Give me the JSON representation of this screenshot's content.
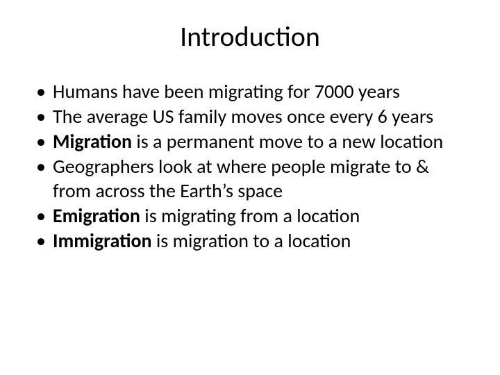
{
  "slide": {
    "title": "Introduction",
    "bullets": [
      {
        "runs": [
          {
            "text": "Humans have been migrating for 7000 years",
            "bold": false
          }
        ]
      },
      {
        "runs": [
          {
            "text": "The average US family moves once every 6 years",
            "bold": false
          }
        ]
      },
      {
        "runs": [
          {
            "text": "Migration",
            "bold": true
          },
          {
            "text": " is a permanent move to a new location",
            "bold": false
          }
        ]
      },
      {
        "runs": [
          {
            "text": "Geographers look at where people migrate to & from across the Earth’s space",
            "bold": false
          }
        ]
      },
      {
        "runs": [
          {
            "text": "Emigration",
            "bold": true
          },
          {
            "text": " is migrating from a location",
            "bold": false
          }
        ]
      },
      {
        "runs": [
          {
            "text": "Immigration",
            "bold": true
          },
          {
            "text": " is migration to a location",
            "bold": false
          }
        ]
      }
    ]
  },
  "style": {
    "background_color": "#ffffff",
    "text_color": "#000000",
    "title_fontsize": 40,
    "body_fontsize": 28,
    "font_family": "Calibri"
  }
}
